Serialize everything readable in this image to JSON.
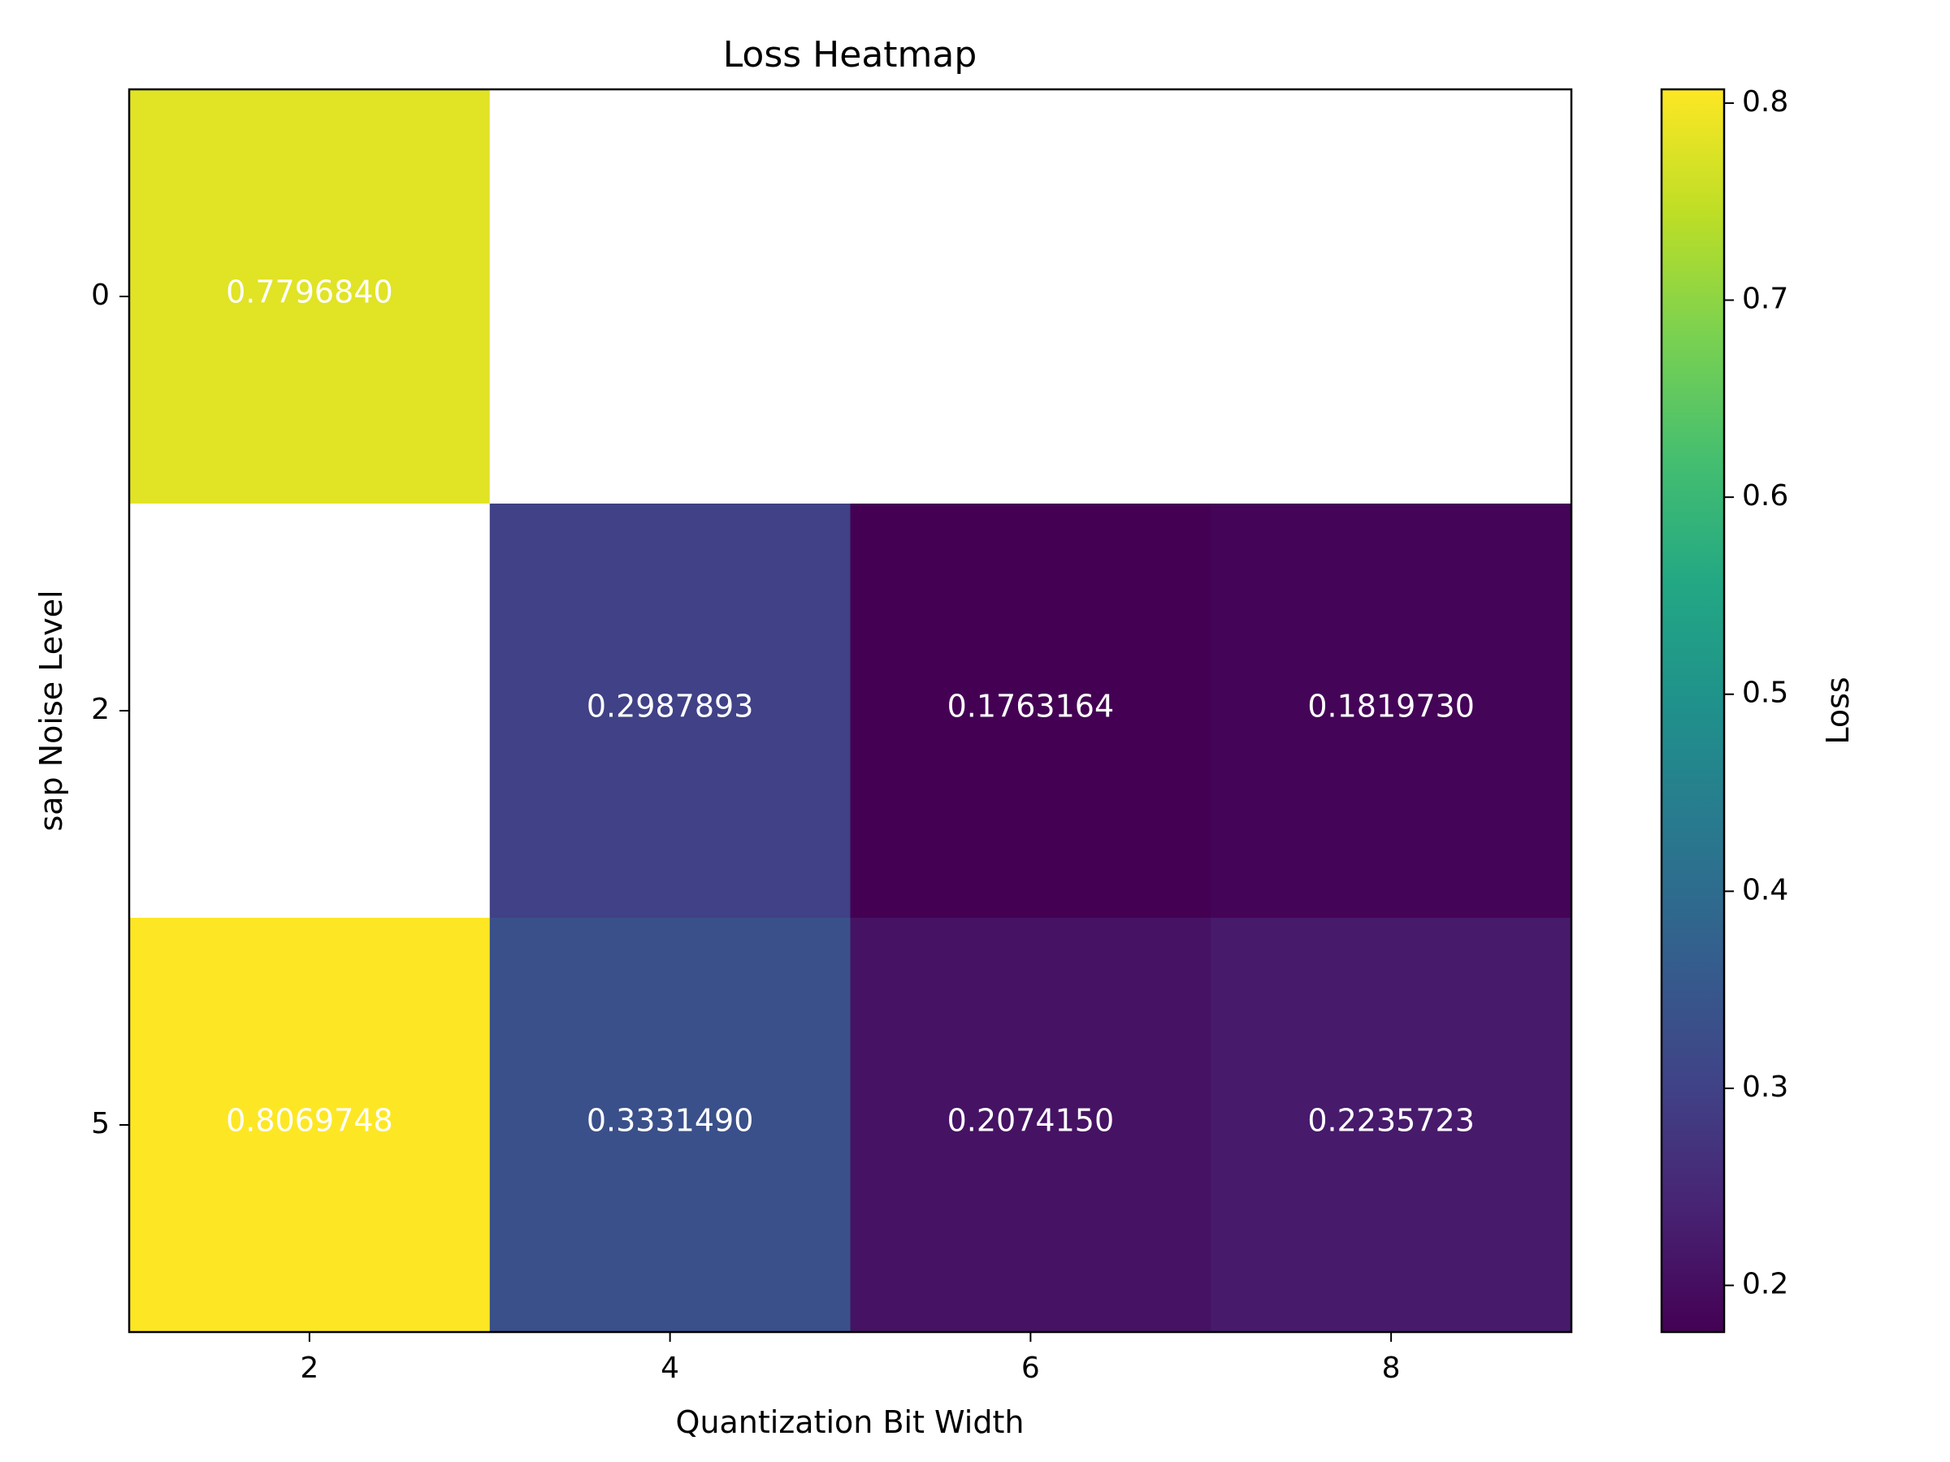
{
  "chart_data": {
    "type": "heatmap",
    "title": "Loss Heatmap",
    "xlabel": "Quantization Bit Width",
    "ylabel": "sap Noise Level",
    "x_categories": [
      2,
      4,
      6,
      8
    ],
    "y_categories": [
      0,
      2,
      5
    ],
    "values": [
      [
        0.779684,
        null,
        null,
        null
      ],
      [
        null,
        0.2987893,
        0.1763164,
        0.181973
      ],
      [
        0.8069748,
        0.333149,
        0.207415,
        0.2235723
      ]
    ],
    "value_labels": [
      [
        "0.7796840",
        "",
        "",
        ""
      ],
      [
        "",
        "0.2987893",
        "0.1763164",
        "0.1819730"
      ],
      [
        "0.8069748",
        "0.3331490",
        "0.2074150",
        "0.2235723"
      ]
    ],
    "x_ticks": [
      "2",
      "4",
      "6",
      "8"
    ],
    "y_ticks": [
      "0",
      "2",
      "5"
    ],
    "colorbar": {
      "label": "Loss",
      "colormap": "viridis",
      "vmin": 0.1763164,
      "vmax": 0.8069748,
      "ticks": [
        "0.2",
        "0.3",
        "0.4",
        "0.5",
        "0.6",
        "0.7",
        "0.8"
      ],
      "tick_values": [
        0.2,
        0.3,
        0.4,
        0.5,
        0.6,
        0.7,
        0.8
      ]
    },
    "missing_color": "#ffffff",
    "annotation_color": "#ffffff"
  }
}
